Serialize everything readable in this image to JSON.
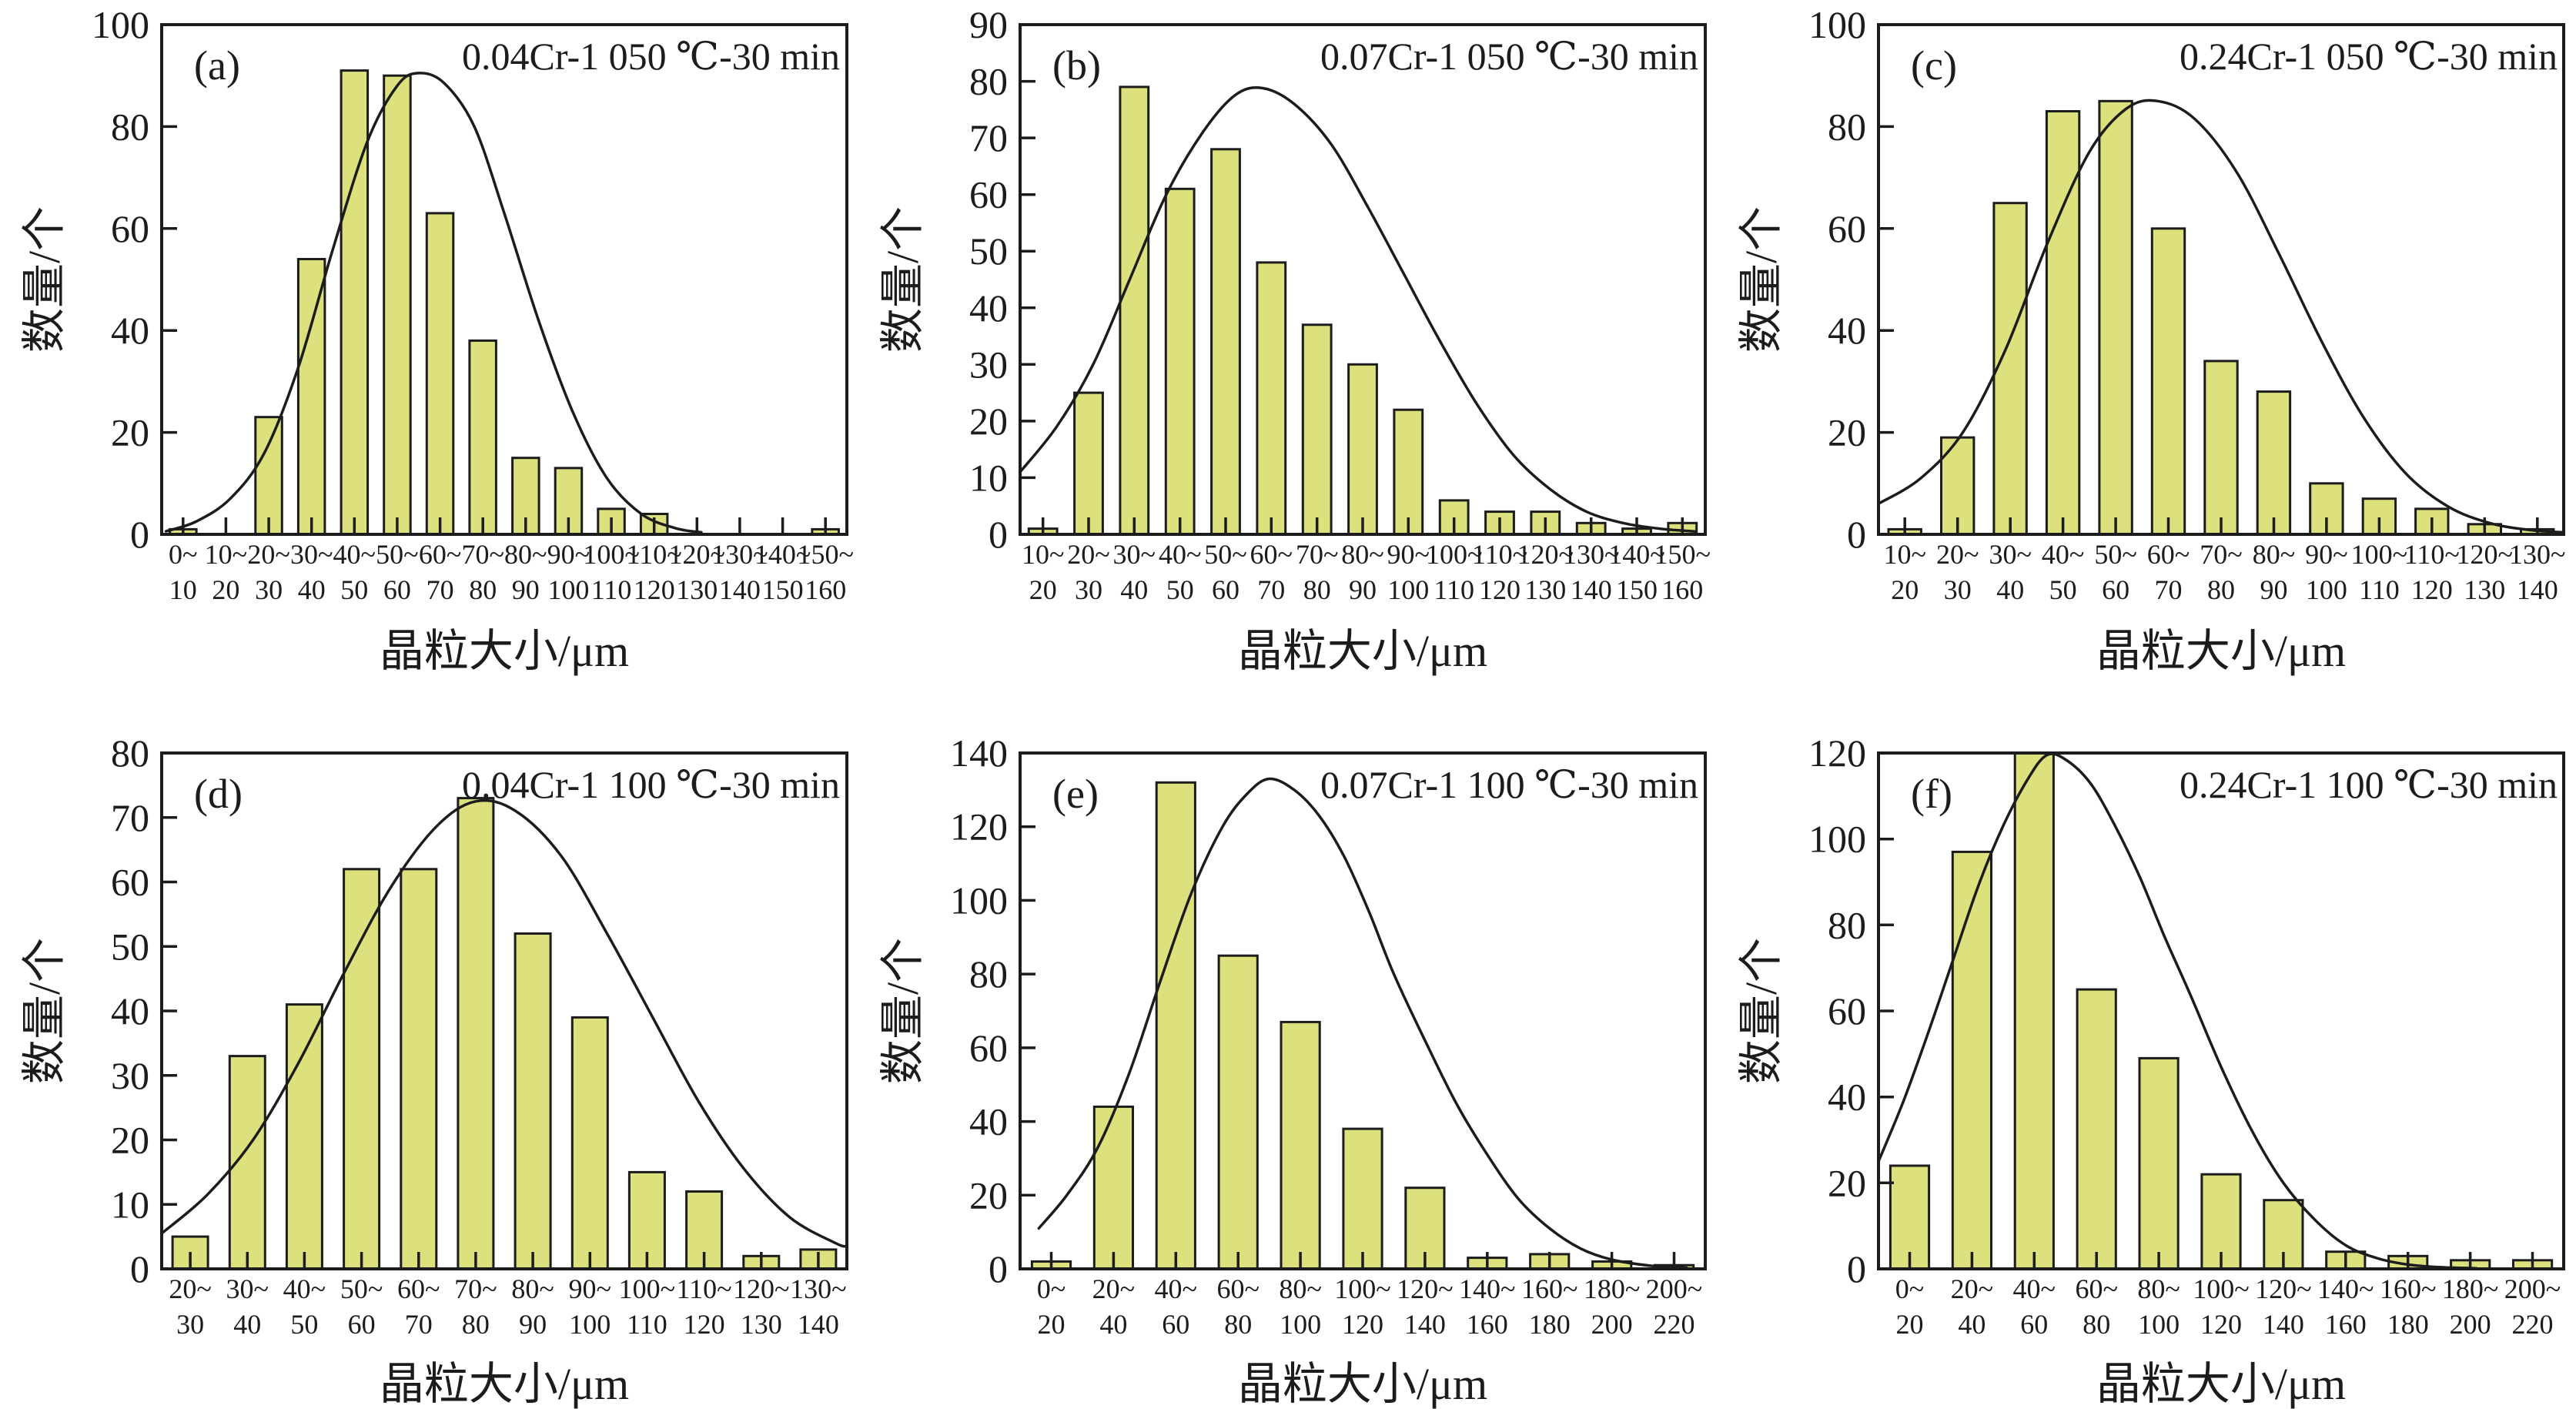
{
  "figure": {
    "background": "#ffffff",
    "text_color": "#1c1c1c",
    "axis_color": "#1c1c1c",
    "bar_fill": "#dde17d",
    "bar_stroke": "#1c1c1c",
    "curve_color": "#1c1c1c"
  },
  "chart_data": [
    {
      "type": "bar",
      "panel_label": "(a)",
      "title": "0.04Cr-1 050 ℃-30 min",
      "xlabel": "晶粒大小/μm",
      "ylabel": "数量/个",
      "ylim": [
        0,
        100
      ],
      "yticks": [
        0,
        20,
        40,
        60,
        80,
        100
      ],
      "xlim": [
        0,
        160
      ],
      "grid": false,
      "legend": null,
      "categories": [
        {
          "t": "0~",
          "b": "10"
        },
        {
          "t": "10~",
          "b": "20"
        },
        {
          "t": "20~",
          "b": "30"
        },
        {
          "t": "30~",
          "b": "40"
        },
        {
          "t": "40~",
          "b": "50"
        },
        {
          "t": "50~",
          "b": "60"
        },
        {
          "t": "60~",
          "b": "70"
        },
        {
          "t": "70~",
          "b": "80"
        },
        {
          "t": "80~",
          "b": "90"
        },
        {
          "t": "90~",
          "b": "100"
        },
        {
          "t": "100~",
          "b": "110"
        },
        {
          "t": "110~",
          "b": "120"
        },
        {
          "t": "120~",
          "b": "130"
        },
        {
          "t": "130~",
          "b": "140"
        },
        {
          "t": "140~",
          "b": "150"
        },
        {
          "t": "150~",
          "b": "160"
        }
      ],
      "values": [
        1,
        0,
        23,
        54,
        91,
        90,
        63,
        38,
        15,
        13,
        5,
        4,
        0,
        0,
        0,
        1
      ],
      "curve": {
        "x": [
          1,
          8,
          16,
          24,
          32,
          40,
          48,
          55,
          60,
          66,
          73,
          80,
          88,
          96,
          104,
          112,
          120,
          126
        ],
        "y": [
          0.6,
          2.5,
          7,
          16,
          33,
          56,
          77,
          88,
          90.5,
          88.5,
          80,
          63,
          42,
          24,
          11,
          4,
          1.2,
          0.4
        ]
      }
    },
    {
      "type": "bar",
      "panel_label": "(b)",
      "title": "0.07Cr-1 050 ℃-30 min",
      "xlabel": "晶粒大小/μm",
      "ylabel": "数量/个",
      "ylim": [
        0,
        90
      ],
      "yticks": [
        0,
        10,
        20,
        30,
        40,
        50,
        60,
        70,
        80,
        90
      ],
      "xlim": [
        10,
        160
      ],
      "grid": false,
      "legend": null,
      "categories": [
        {
          "t": "10~",
          "b": "20"
        },
        {
          "t": "20~",
          "b": "30"
        },
        {
          "t": "30~",
          "b": "40"
        },
        {
          "t": "40~",
          "b": "50"
        },
        {
          "t": "50~",
          "b": "60"
        },
        {
          "t": "60~",
          "b": "70"
        },
        {
          "t": "70~",
          "b": "80"
        },
        {
          "t": "80~",
          "b": "90"
        },
        {
          "t": "90~",
          "b": "100"
        },
        {
          "t": "100~",
          "b": "110"
        },
        {
          "t": "110~",
          "b": "120"
        },
        {
          "t": "120~",
          "b": "130"
        },
        {
          "t": "130~",
          "b": "140"
        },
        {
          "t": "140~",
          "b": "150"
        },
        {
          "t": "150~",
          "b": "160"
        }
      ],
      "values": [
        1,
        25,
        79,
        61,
        68,
        48,
        37,
        30,
        22,
        6,
        4,
        4,
        2,
        1,
        2
      ],
      "curve": {
        "x": [
          10,
          18,
          26,
          34,
          42,
          50,
          57,
          63,
          70,
          78,
          86,
          94,
          102,
          110,
          118,
          126,
          134,
          142,
          150,
          158
        ],
        "y": [
          11,
          19,
          30,
          45,
          60,
          71,
          77.5,
          78.8,
          76,
          69,
          58,
          46,
          34,
          23,
          14,
          8,
          4,
          2,
          1,
          0.5
        ]
      }
    },
    {
      "type": "bar",
      "panel_label": "(c)",
      "title": "0.24Cr-1 050 ℃-30 min",
      "xlabel": "晶粒大小/μm",
      "ylabel": "数量/个",
      "ylim": [
        0,
        100
      ],
      "yticks": [
        0,
        20,
        40,
        60,
        80,
        100
      ],
      "xlim": [
        10,
        140
      ],
      "grid": false,
      "legend": null,
      "categories": [
        {
          "t": "10~",
          "b": "20"
        },
        {
          "t": "20~",
          "b": "30"
        },
        {
          "t": "30~",
          "b": "40"
        },
        {
          "t": "40~",
          "b": "50"
        },
        {
          "t": "50~",
          "b": "60"
        },
        {
          "t": "60~",
          "b": "70"
        },
        {
          "t": "70~",
          "b": "80"
        },
        {
          "t": "80~",
          "b": "90"
        },
        {
          "t": "90~",
          "b": "100"
        },
        {
          "t": "100~",
          "b": "110"
        },
        {
          "t": "110~",
          "b": "120"
        },
        {
          "t": "120~",
          "b": "130"
        },
        {
          "t": "130~",
          "b": "140"
        }
      ],
      "values": [
        1,
        19,
        65,
        83,
        85,
        60,
        34,
        28,
        10,
        7,
        5,
        2,
        1
      ],
      "curve": {
        "x": [
          10,
          18,
          26,
          34,
          42,
          50,
          57,
          63,
          70,
          78,
          86,
          94,
          102,
          110,
          118,
          126,
          134,
          140
        ],
        "y": [
          6,
          11,
          20,
          36,
          57,
          75,
          83.5,
          85,
          81.5,
          71,
          55,
          38,
          23,
          12,
          5.5,
          2.2,
          0.8,
          0.4
        ]
      }
    },
    {
      "type": "bar",
      "panel_label": "(d)",
      "title": "0.04Cr-1 100 ℃-30 min",
      "xlabel": "晶粒大小/μm",
      "ylabel": "数量/个",
      "ylim": [
        0,
        80
      ],
      "yticks": [
        0,
        10,
        20,
        30,
        40,
        50,
        60,
        70,
        80
      ],
      "xlim": [
        20,
        140
      ],
      "grid": false,
      "legend": null,
      "categories": [
        {
          "t": "20~",
          "b": "30"
        },
        {
          "t": "30~",
          "b": "40"
        },
        {
          "t": "40~",
          "b": "50"
        },
        {
          "t": "50~",
          "b": "60"
        },
        {
          "t": "60~",
          "b": "70"
        },
        {
          "t": "70~",
          "b": "80"
        },
        {
          "t": "80~",
          "b": "90"
        },
        {
          "t": "90~",
          "b": "100"
        },
        {
          "t": "100~",
          "b": "110"
        },
        {
          "t": "110~",
          "b": "120"
        },
        {
          "t": "120~",
          "b": "130"
        },
        {
          "t": "130~",
          "b": "140"
        }
      ],
      "values": [
        5,
        33,
        41,
        62,
        62,
        73,
        52,
        39,
        15,
        12,
        2,
        3
      ],
      "curve": {
        "x": [
          20,
          28,
          36,
          44,
          52,
          60,
          68,
          75,
          82,
          90,
          98,
          106,
          114,
          122,
          130,
          138,
          140
        ],
        "y": [
          5.5,
          11.5,
          20,
          32,
          46,
          59,
          68.5,
          72.5,
          71,
          64,
          52,
          39,
          26,
          15.5,
          8,
          4,
          3.5
        ]
      }
    },
    {
      "type": "bar",
      "panel_label": "(e)",
      "title": "0.07Cr-1 100 ℃-30 min",
      "xlabel": "晶粒大小/μm",
      "ylabel": "数量/个",
      "ylim": [
        0,
        140
      ],
      "yticks": [
        0,
        20,
        40,
        60,
        80,
        100,
        120,
        140
      ],
      "xlim": [
        0,
        220
      ],
      "grid": false,
      "legend": null,
      "categories": [
        {
          "t": "0~",
          "b": "20"
        },
        {
          "t": "20~",
          "b": "40"
        },
        {
          "t": "40~",
          "b": "60"
        },
        {
          "t": "60~",
          "b": "80"
        },
        {
          "t": "80~",
          "b": "100"
        },
        {
          "t": "100~",
          "b": "120"
        },
        {
          "t": "120~",
          "b": "140"
        },
        {
          "t": "140~",
          "b": "160"
        },
        {
          "t": "160~",
          "b": "180"
        },
        {
          "t": "180~",
          "b": "200"
        },
        {
          "t": "200~",
          "b": "220"
        }
      ],
      "values": [
        2,
        44,
        132,
        85,
        67,
        38,
        22,
        3,
        4,
        2,
        1
      ],
      "curve": {
        "x": [
          6,
          15,
          25,
          35,
          45,
          55,
          65,
          73,
          80,
          88,
          96,
          104,
          112,
          120,
          130,
          140,
          150,
          160,
          170,
          180,
          190,
          202,
          214
        ],
        "y": [
          11,
          20,
          33,
          53,
          78,
          102,
          120,
          129,
          133,
          130,
          123,
          112,
          97,
          80,
          62,
          45,
          31,
          19,
          11,
          5.5,
          2.5,
          0.9,
          0.3
        ]
      }
    },
    {
      "type": "bar",
      "panel_label": "(f)",
      "title": "0.24Cr-1 100 ℃-30 min",
      "xlabel": "晶粒大小/μm",
      "ylabel": "数量/个",
      "ylim": [
        0,
        120
      ],
      "yticks": [
        0,
        20,
        40,
        60,
        80,
        100,
        120
      ],
      "xlim": [
        0,
        220
      ],
      "grid": false,
      "legend": null,
      "categories": [
        {
          "t": "0~",
          "b": "20"
        },
        {
          "t": "20~",
          "b": "40"
        },
        {
          "t": "40~",
          "b": "60"
        },
        {
          "t": "60~",
          "b": "80"
        },
        {
          "t": "80~",
          "b": "100"
        },
        {
          "t": "100~",
          "b": "120"
        },
        {
          "t": "120~",
          "b": "140"
        },
        {
          "t": "140~",
          "b": "160"
        },
        {
          "t": "160~",
          "b": "180"
        },
        {
          "t": "180~",
          "b": "200"
        },
        {
          "t": "200~",
          "b": "220"
        }
      ],
      "values": [
        24,
        97,
        120,
        65,
        49,
        22,
        16,
        4,
        3,
        2,
        2
      ],
      "curve": {
        "x": [
          0,
          8,
          16,
          24,
          32,
          40,
          48,
          54,
          60,
          68,
          76,
          84,
          92,
          100,
          110,
          120,
          130,
          140,
          150,
          160,
          170,
          180,
          192
        ],
        "y": [
          25,
          39,
          55,
          72,
          89,
          103,
          114,
          119.5,
          118.5,
          113,
          103,
          91,
          77,
          64,
          47,
          32,
          20,
          11.5,
          5.5,
          2.5,
          1,
          0.4,
          0.15
        ]
      }
    }
  ]
}
